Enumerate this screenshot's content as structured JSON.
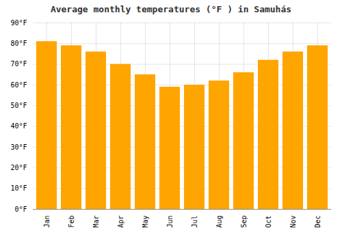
{
  "chart_data": {
    "type": "bar",
    "title": "Average monthly temperatures (°F ) in Samuhás",
    "categories": [
      "Jan",
      "Feb",
      "Mar",
      "Apr",
      "May",
      "Jun",
      "Jul",
      "Aug",
      "Sep",
      "Oct",
      "Nov",
      "Dec"
    ],
    "values": [
      81,
      79,
      76,
      70,
      65,
      59,
      60,
      62,
      66,
      72,
      76,
      79
    ],
    "color": "#FFA500",
    "ylim": [
      0,
      90
    ],
    "yticks": [
      {
        "value": 0,
        "label": "0°F"
      },
      {
        "value": 10,
        "label": "10°F"
      },
      {
        "value": 20,
        "label": "20°F"
      },
      {
        "value": 30,
        "label": "30°F"
      },
      {
        "value": 40,
        "label": "40°F"
      },
      {
        "value": 50,
        "label": "50°F"
      },
      {
        "value": 60,
        "label": "60°F"
      },
      {
        "value": 70,
        "label": "70°F"
      },
      {
        "value": 80,
        "label": "80°F"
      },
      {
        "value": 90,
        "label": "90°F"
      }
    ],
    "grid": true
  }
}
